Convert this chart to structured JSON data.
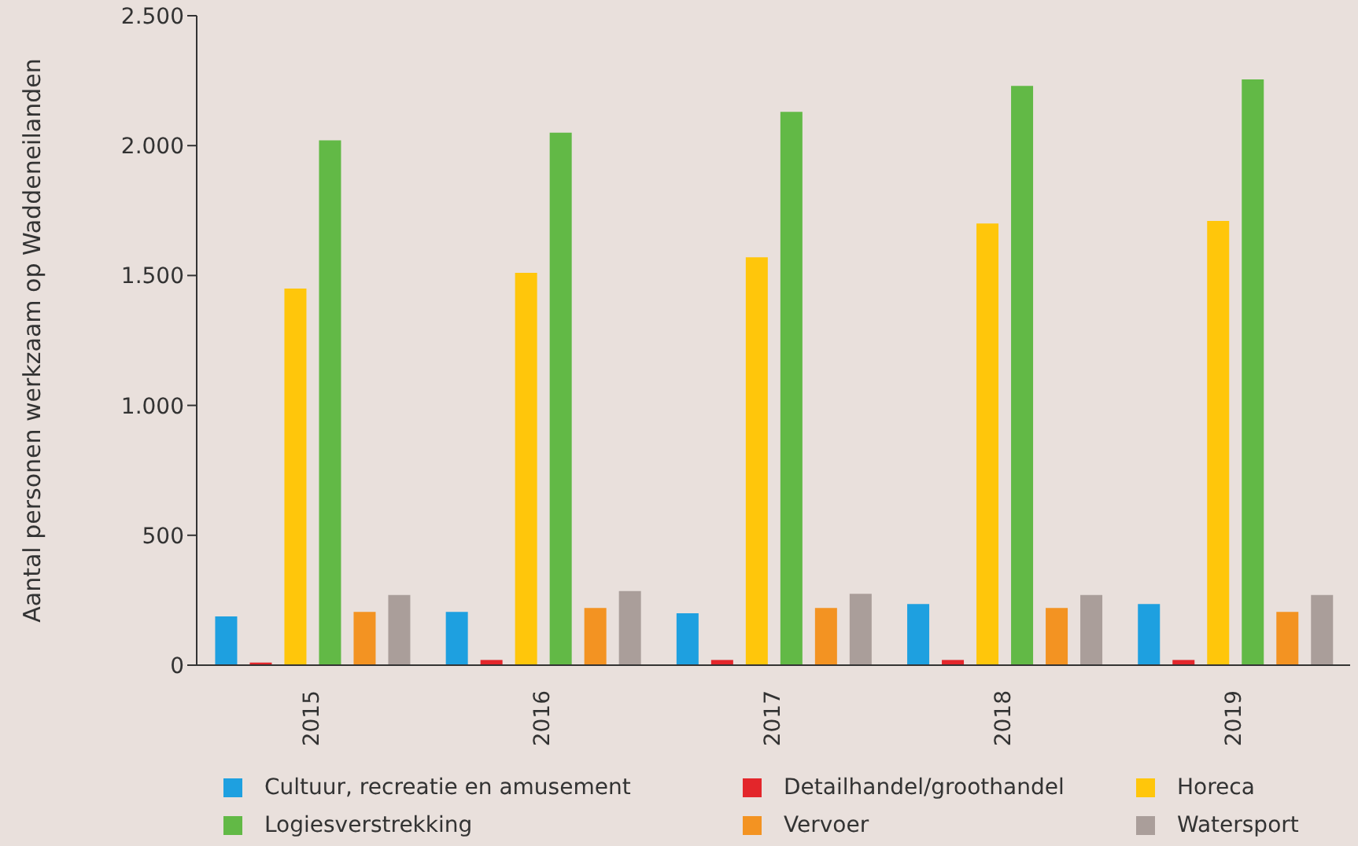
{
  "chart_data": {
    "type": "bar",
    "ylabel": "Aantal personen werkzaam op Waddeneilanden",
    "categories": [
      "2015",
      "2016",
      "2017",
      "2018",
      "2019"
    ],
    "series": [
      {
        "name": "Cultuur, recreatie en amusement",
        "color": "#1ea0e0",
        "values": [
          188,
          205,
          200,
          235,
          235
        ]
      },
      {
        "name": "Detailhandel/groothandel",
        "color": "#e3262b",
        "values": [
          10,
          20,
          20,
          20,
          20
        ]
      },
      {
        "name": "Horeca",
        "color": "#ffc60b",
        "values": [
          1450,
          1510,
          1570,
          1700,
          1710
        ]
      },
      {
        "name": "Logiesverstrekking",
        "color": "#62b946",
        "values": [
          2020,
          2050,
          2130,
          2230,
          2255
        ]
      },
      {
        "name": "Vervoer",
        "color": "#f39322",
        "values": [
          205,
          220,
          220,
          220,
          205
        ]
      },
      {
        "name": "Watersport",
        "color": "#aa9e9a",
        "values": [
          270,
          285,
          275,
          270,
          270
        ]
      }
    ],
    "ylim": [
      0,
      2500
    ],
    "yticks": [
      {
        "value": 0,
        "label": "0"
      },
      {
        "value": 500,
        "label": "500"
      },
      {
        "value": 1000,
        "label": "1.000"
      },
      {
        "value": 1500,
        "label": "1.500"
      },
      {
        "value": 2000,
        "label": "2.000"
      },
      {
        "value": 2500,
        "label": "2.500"
      }
    ],
    "grid": false,
    "legend": "bottom"
  }
}
